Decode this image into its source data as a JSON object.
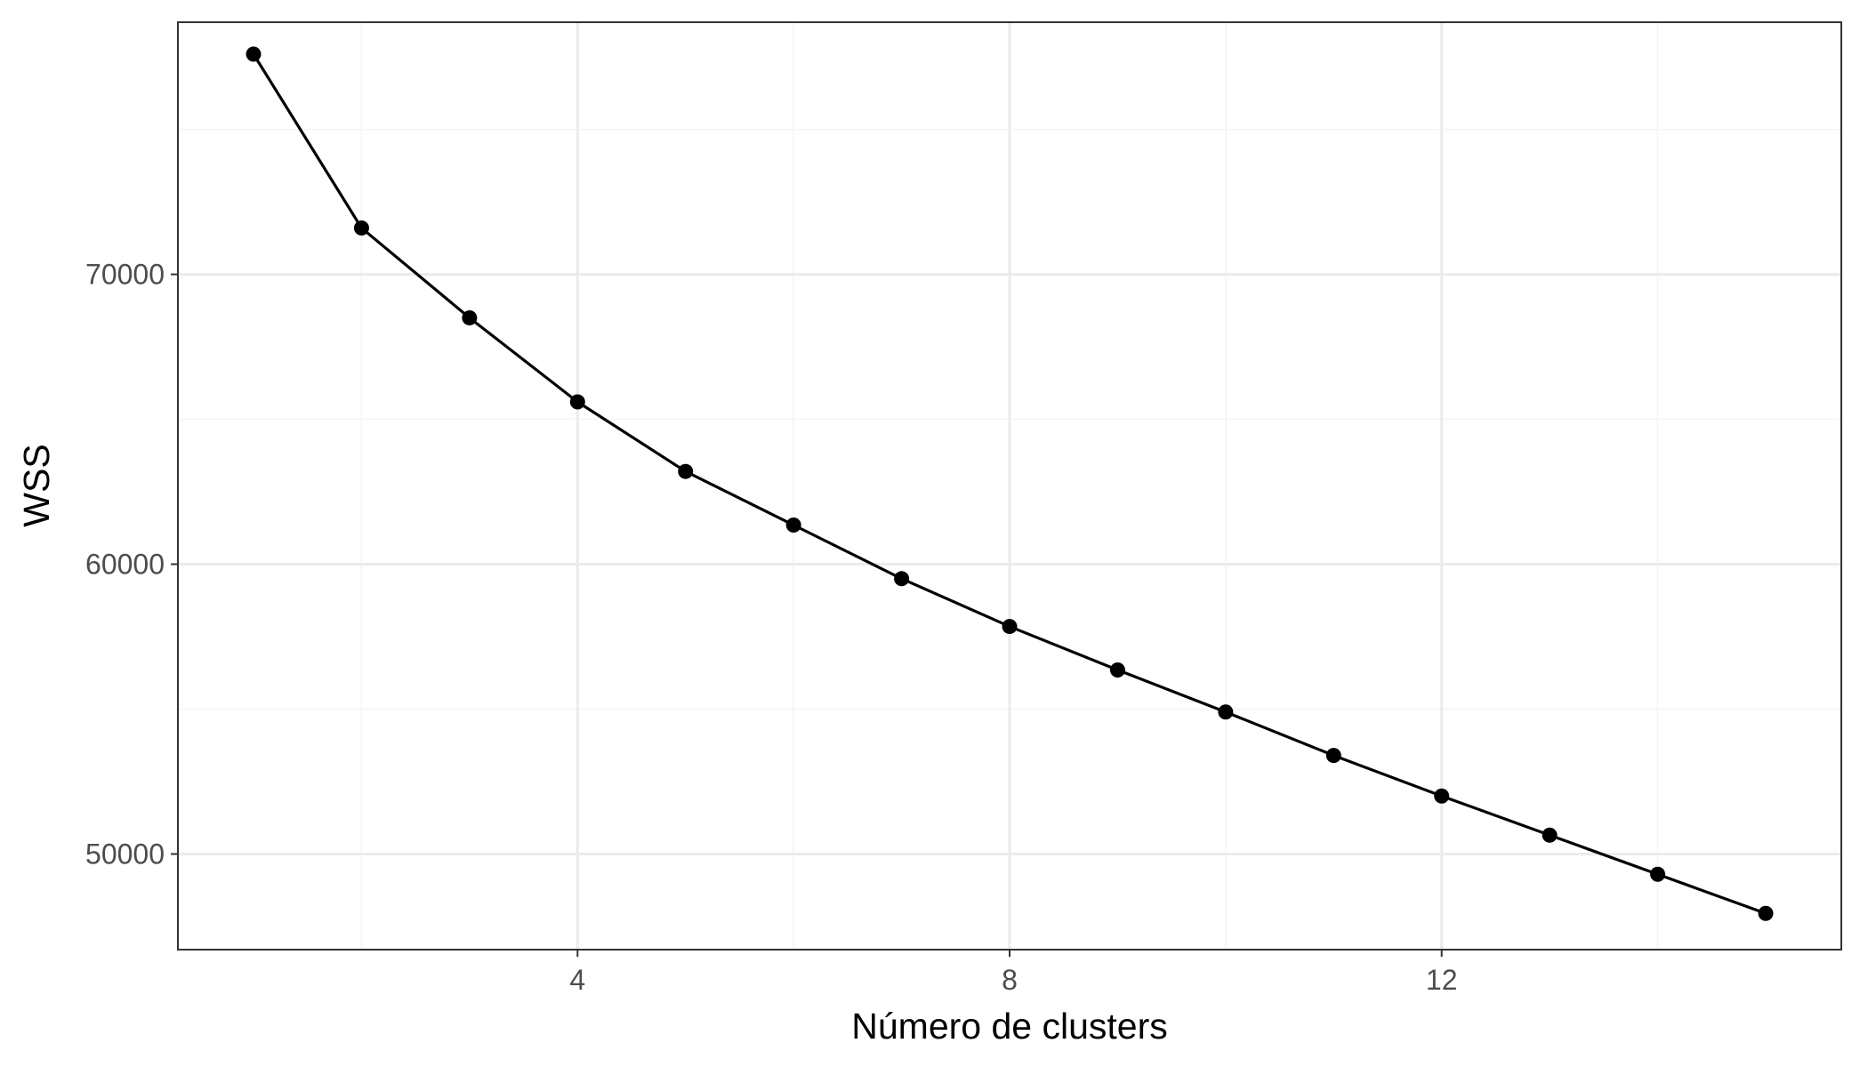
{
  "chart_data": {
    "type": "line",
    "title": "",
    "xlabel": "Número de clusters",
    "ylabel": "WSS",
    "x": [
      1,
      2,
      3,
      4,
      5,
      6,
      7,
      8,
      9,
      10,
      11,
      12,
      13,
      14,
      15
    ],
    "series": [
      {
        "values": [
          77600,
          71600,
          68500,
          65600,
          63200,
          61350,
          59500,
          57850,
          56350,
          54900,
          53400,
          52000,
          50650,
          49300,
          47950
        ]
      }
    ],
    "xlim": [
      0.3,
      15.7
    ],
    "ylim": [
      46700,
      78700
    ],
    "x_major_ticks": [
      4,
      8,
      12
    ],
    "x_minor_ticks": [
      2,
      6,
      10,
      14
    ],
    "y_major_ticks": [
      50000,
      60000,
      70000
    ],
    "y_minor_ticks": [
      55000,
      65000,
      75000
    ],
    "x_tick_labels": [
      "4",
      "8",
      "12"
    ],
    "y_tick_labels": [
      "50000",
      "60000",
      "70000"
    ],
    "grid": true,
    "theme": "bw",
    "colors": {
      "line": "#000000",
      "point": "#000000",
      "grid_major": "#ebebeb",
      "grid_minor": "#f4f4f4",
      "panel_border": "#333333",
      "tick_text": "#4d4d4d"
    }
  }
}
